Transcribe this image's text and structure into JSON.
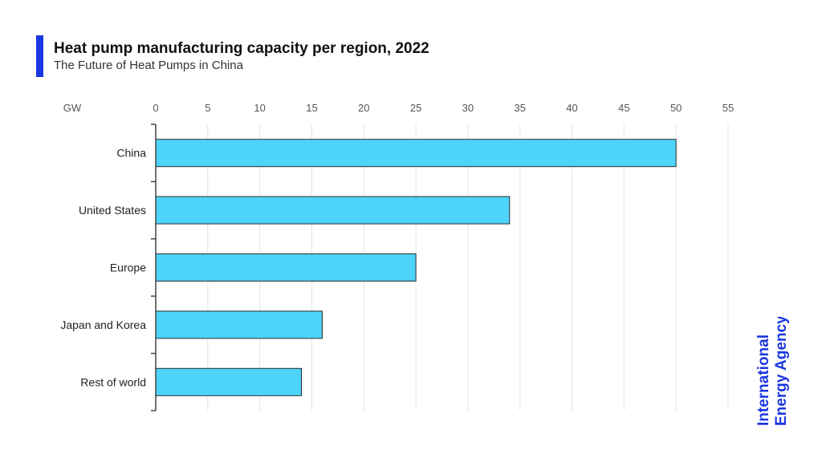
{
  "header": {
    "title": "Heat pump manufacturing capacity per region, 2022",
    "subtitle": "The Future of Heat Pumps in China"
  },
  "colors": {
    "accent": "#1a36e0",
    "bar_fill": "#4dd4fb",
    "bar_stroke": "#2b2b2b",
    "grid": "#e3e3e3",
    "axis": "#444444",
    "logo": "#1a36e0"
  },
  "logo": {
    "line1": "International",
    "line2": "Energy Agency"
  },
  "chart_data": {
    "type": "bar",
    "orientation": "horizontal",
    "unit_label": "GW",
    "categories": [
      "China",
      "United States",
      "Europe",
      "Japan and Korea",
      "Rest of world"
    ],
    "values": [
      50,
      34,
      25,
      16,
      14
    ],
    "xlim": [
      0,
      55
    ],
    "xticks": [
      0,
      5,
      10,
      15,
      20,
      25,
      30,
      35,
      40,
      45,
      50,
      55
    ],
    "grid": true,
    "x_axis_position": "top",
    "legend": "none"
  }
}
